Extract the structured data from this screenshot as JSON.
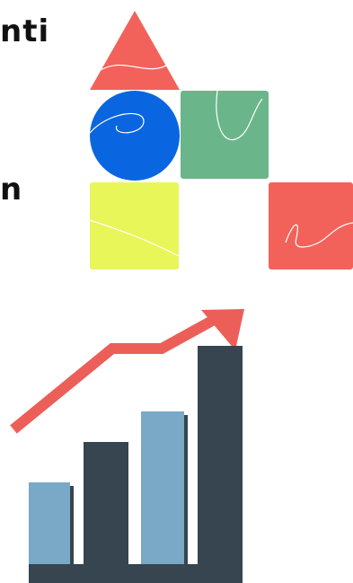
{
  "text_fragments": {
    "top": "nti",
    "middle": "n"
  }
}
